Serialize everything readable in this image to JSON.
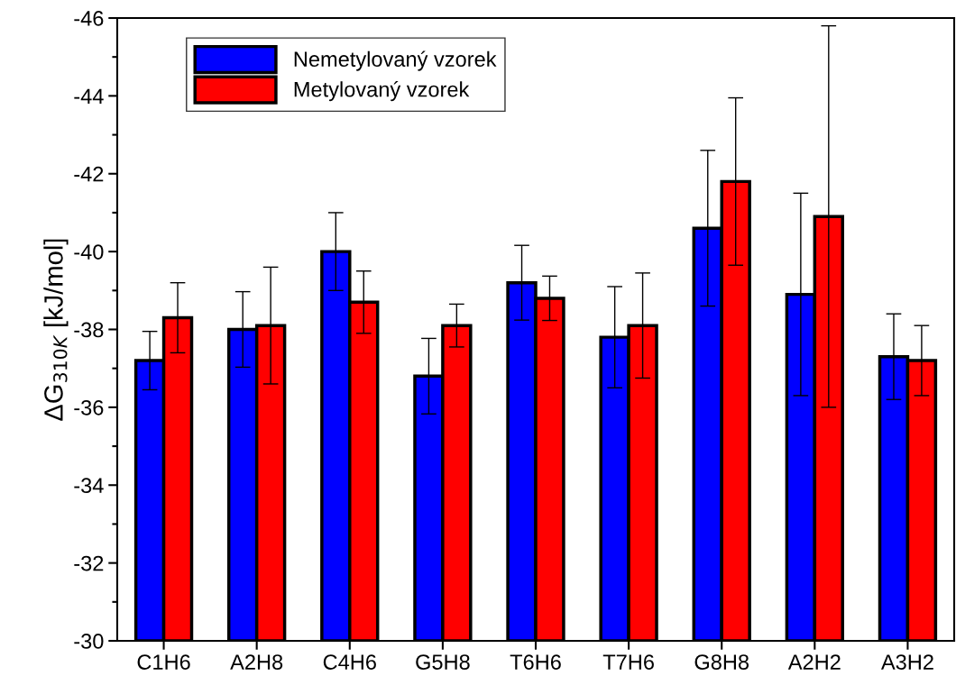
{
  "chart_data": {
    "type": "bar",
    "ylabel": "ΔG$_{310K}$ [kJ/mol]",
    "categories": [
      "C1H6",
      "A2H8",
      "C4H6",
      "G5H8",
      "T6H6",
      "T7H6",
      "G8H8",
      "A2H2",
      "A3H2"
    ],
    "series": [
      {
        "name": "Nemetylovaný vzorek",
        "color": "#0000ff",
        "values": [
          -37.2,
          -38.0,
          -40.0,
          -36.8,
          -39.2,
          -37.8,
          -40.6,
          -38.9,
          -37.3
        ],
        "errors": [
          0.75,
          0.97,
          1.0,
          0.97,
          0.96,
          1.3,
          2.0,
          2.6,
          1.1
        ]
      },
      {
        "name": "Metylovaný vzorek",
        "color": "#ff0000",
        "values": [
          -38.3,
          -38.1,
          -38.7,
          -38.1,
          -38.8,
          -38.1,
          -41.8,
          -40.9,
          -37.2
        ],
        "errors": [
          0.9,
          1.5,
          0.8,
          0.55,
          0.57,
          1.35,
          2.15,
          4.9,
          0.9
        ]
      }
    ],
    "ylim": [
      -30,
      -46
    ],
    "yticks": [
      -30,
      -32,
      -34,
      -36,
      -38,
      -40,
      -42,
      -44,
      -46
    ],
    "grid": false,
    "legend": "top left"
  }
}
